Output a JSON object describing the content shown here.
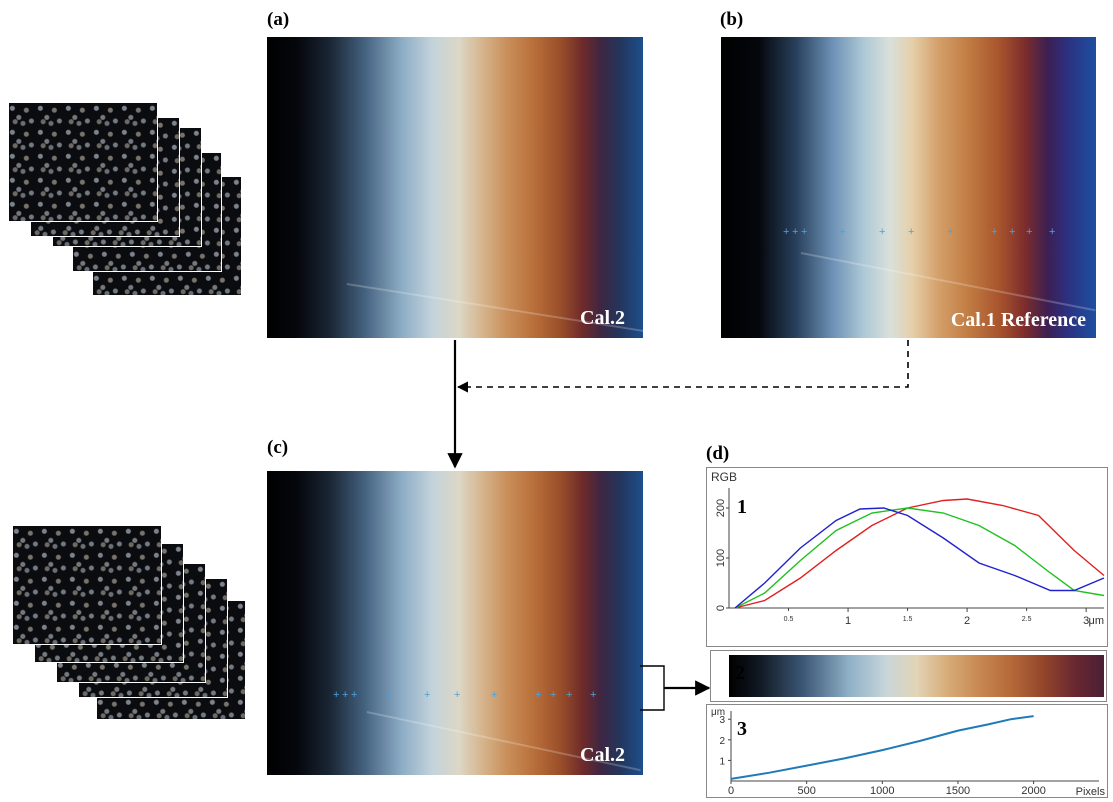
{
  "panels": {
    "a": {
      "label": "(a)",
      "caption": "Cal.2"
    },
    "b": {
      "label": "(b)",
      "caption": "Cal.1 Reference"
    },
    "c": {
      "label": "(c)",
      "caption": "Cal.2"
    },
    "d": {
      "label": "(d)"
    }
  },
  "colors": {
    "red": "#e02020",
    "green": "#20c020",
    "blue": "#2020d0",
    "curve": "#1f7ab8",
    "marker": "#4aa3df"
  },
  "chart_data": [
    {
      "type": "line",
      "title": "RGB",
      "index_label": "1",
      "xlabel": "μm",
      "xlim": [
        0,
        3.15
      ],
      "ylim": [
        0,
        240
      ],
      "x_ticks_major": [
        "1",
        "2",
        "3"
      ],
      "x_ticks_minor": [
        "0.5",
        "1.5",
        "2.5"
      ],
      "y_ticks": [
        "0",
        "100",
        "200"
      ],
      "x_unit_label": "μm",
      "series": [
        {
          "color": "red",
          "x": [
            0.05,
            0.3,
            0.6,
            0.9,
            1.2,
            1.5,
            1.8,
            2.0,
            2.3,
            2.6,
            2.9,
            3.15
          ],
          "y": [
            0,
            15,
            60,
            115,
            165,
            200,
            215,
            218,
            205,
            185,
            115,
            65
          ]
        },
        {
          "color": "green",
          "x": [
            0.05,
            0.3,
            0.6,
            0.9,
            1.2,
            1.5,
            1.8,
            2.1,
            2.4,
            2.7,
            2.9,
            3.15
          ],
          "y": [
            0,
            30,
            95,
            155,
            190,
            200,
            190,
            165,
            125,
            70,
            35,
            25
          ]
        },
        {
          "color": "blue",
          "x": [
            0.05,
            0.3,
            0.6,
            0.9,
            1.1,
            1.3,
            1.5,
            1.8,
            2.1,
            2.4,
            2.7,
            2.9,
            3.15
          ],
          "y": [
            0,
            50,
            120,
            175,
            198,
            200,
            185,
            140,
            90,
            65,
            35,
            35,
            60
          ]
        }
      ]
    },
    {
      "type": "line",
      "index_label": "3",
      "ylabel": "μm",
      "xlabel": "Pixels",
      "xlim": [
        0,
        2300
      ],
      "ylim": [
        0,
        3.4
      ],
      "x_ticks": [
        "0",
        "500",
        "1000",
        "1500",
        "2000"
      ],
      "y_ticks": [
        "1",
        "2",
        "3"
      ],
      "series": [
        {
          "color": "curve",
          "x": [
            0,
            250,
            500,
            750,
            1000,
            1250,
            1500,
            1700,
            1850,
            2000
          ],
          "y": [
            0.1,
            0.4,
            0.75,
            1.1,
            1.5,
            1.95,
            2.45,
            2.75,
            3.0,
            3.15
          ]
        }
      ]
    }
  ],
  "bar_label": "2"
}
